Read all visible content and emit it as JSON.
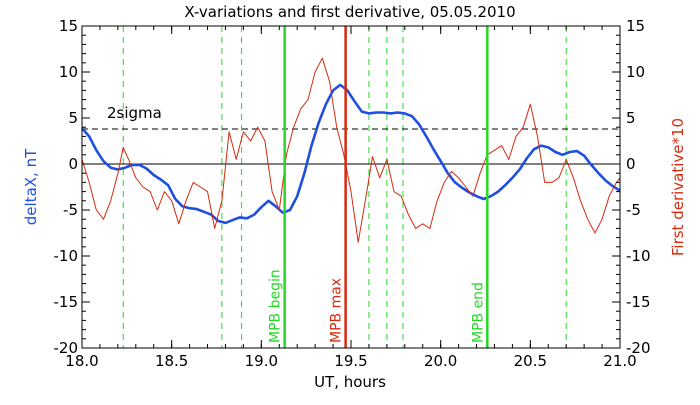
{
  "chart_data": {
    "type": "line",
    "title": "X-variations and first derivative, 05.05.2010",
    "xlabel": "UT, hours",
    "ylabel_left": "deltaX, nT",
    "ylabel_right": "First derivative*10",
    "xlim": [
      18.0,
      21.0
    ],
    "ylim": [
      -20,
      15
    ],
    "ylim_right": [
      -20,
      15
    ],
    "x_ticks": [
      "18.0",
      "18.5",
      "19.0",
      "19.5",
      "20.0",
      "20.5",
      "21.0"
    ],
    "y_ticks": [
      "15",
      "10",
      "5",
      "0",
      "-5",
      "-10",
      "-15",
      "-20"
    ],
    "y_ticks_right": [
      "15",
      "10",
      "5",
      "0",
      "-5",
      "-10",
      "-15",
      "-20"
    ],
    "grid": false,
    "threshold": {
      "label": "2sigma",
      "y": 3.8,
      "style": "dashed"
    },
    "zero_line": 0,
    "colors": {
      "deltaX": "#1f4fe0",
      "derivative": "#d52a0f",
      "marker_green": "#27d827",
      "marker_red": "#d52a0f"
    },
    "vertical_lines": [
      {
        "x": 19.13,
        "label": "MPB begin",
        "color": "green",
        "style": "solid"
      },
      {
        "x": 19.47,
        "label": "MPB max",
        "color": "red",
        "style": "solid"
      },
      {
        "x": 20.26,
        "label": "MPB end",
        "color": "green",
        "style": "solid"
      }
    ],
    "dashed_markers": [
      18.23,
      18.78,
      18.89,
      19.6,
      19.7,
      19.79,
      20.7
    ],
    "series": [
      {
        "key": "deltaX",
        "axis": "left",
        "x": [
          18.0,
          18.04,
          18.08,
          18.12,
          18.16,
          18.2,
          18.24,
          18.28,
          18.32,
          18.36,
          18.4,
          18.44,
          18.48,
          18.52,
          18.56,
          18.6,
          18.64,
          18.68,
          18.72,
          18.76,
          18.8,
          18.84,
          18.88,
          18.92,
          18.96,
          19.0,
          19.04,
          19.08,
          19.12,
          19.16,
          19.2,
          19.24,
          19.28,
          19.32,
          19.36,
          19.4,
          19.44,
          19.48,
          19.52,
          19.56,
          19.6,
          19.64,
          19.68,
          19.72,
          19.76,
          19.8,
          19.84,
          19.88,
          19.92,
          19.96,
          20.0,
          20.04,
          20.08,
          20.12,
          20.16,
          20.2,
          20.24,
          20.28,
          20.32,
          20.36,
          20.4,
          20.44,
          20.48,
          20.52,
          20.56,
          20.6,
          20.64,
          20.68,
          20.72,
          20.76,
          20.8,
          20.84,
          20.88,
          20.92,
          20.96,
          21.0
        ],
        "y": [
          3.9,
          3.0,
          1.5,
          0.3,
          -0.4,
          -0.6,
          -0.4,
          -0.1,
          -0.1,
          -0.5,
          -1.2,
          -1.7,
          -2.3,
          -3.8,
          -4.6,
          -4.8,
          -4.9,
          -5.2,
          -5.5,
          -6.2,
          -6.4,
          -6.1,
          -5.8,
          -5.9,
          -5.5,
          -4.7,
          -4.0,
          -4.6,
          -5.3,
          -5.0,
          -3.5,
          -1.0,
          2.0,
          4.5,
          6.5,
          8.0,
          8.6,
          8.0,
          6.8,
          5.7,
          5.5,
          5.6,
          5.6,
          5.5,
          5.6,
          5.5,
          5.2,
          4.3,
          3.0,
          1.6,
          0.3,
          -1.0,
          -2.0,
          -2.6,
          -3.1,
          -3.5,
          -3.8,
          -3.5,
          -3.0,
          -2.3,
          -1.5,
          -0.6,
          0.6,
          1.6,
          2.0,
          1.8,
          1.3,
          1.0,
          1.3,
          1.4,
          0.9,
          -0.1,
          -1.0,
          -1.8,
          -2.4,
          -2.9
        ]
      },
      {
        "key": "derivative",
        "axis": "right",
        "x": [
          18.0,
          18.04,
          18.08,
          18.12,
          18.16,
          18.2,
          18.23,
          18.26,
          18.3,
          18.34,
          18.38,
          18.42,
          18.46,
          18.5,
          18.54,
          18.58,
          18.62,
          18.66,
          18.7,
          18.74,
          18.78,
          18.82,
          18.86,
          18.9,
          18.94,
          18.98,
          19.02,
          19.06,
          19.1,
          19.14,
          19.18,
          19.22,
          19.26,
          19.3,
          19.34,
          19.38,
          19.42,
          19.46,
          19.5,
          19.54,
          19.58,
          19.62,
          19.66,
          19.7,
          19.74,
          19.78,
          19.82,
          19.86,
          19.9,
          19.94,
          19.98,
          20.02,
          20.06,
          20.1,
          20.14,
          20.18,
          20.22,
          20.26,
          20.3,
          20.34,
          20.38,
          20.42,
          20.46,
          20.5,
          20.54,
          20.58,
          20.62,
          20.66,
          20.7,
          20.74,
          20.78,
          20.82,
          20.86,
          20.9,
          20.94,
          20.98,
          21.0
        ],
        "y": [
          0.5,
          -2.0,
          -5.0,
          -6.0,
          -4.0,
          -1.0,
          1.8,
          0.5,
          -1.5,
          -2.5,
          -3.0,
          -5.0,
          -3.0,
          -4.0,
          -6.5,
          -4.0,
          -2.0,
          -2.5,
          -3.0,
          -7.0,
          -4.0,
          3.5,
          0.5,
          3.5,
          2.5,
          4.0,
          2.5,
          -3.0,
          -5.0,
          1.0,
          4.0,
          6.0,
          7.0,
          10.0,
          11.5,
          9.0,
          4.0,
          1.0,
          -3.0,
          -8.5,
          -4.0,
          0.8,
          -1.5,
          0.5,
          -3.0,
          -3.5,
          -5.5,
          -7.0,
          -6.5,
          -7.0,
          -4.0,
          -2.0,
          -0.8,
          -1.5,
          -2.5,
          -3.5,
          -1.0,
          1.0,
          1.5,
          2.0,
          0.5,
          3.0,
          4.0,
          6.5,
          3.0,
          -2.0,
          -2.0,
          -1.5,
          0.5,
          -1.5,
          -4.0,
          -6.0,
          -7.5,
          -6.0,
          -3.5,
          -2.0,
          -1.5
        ]
      }
    ]
  }
}
